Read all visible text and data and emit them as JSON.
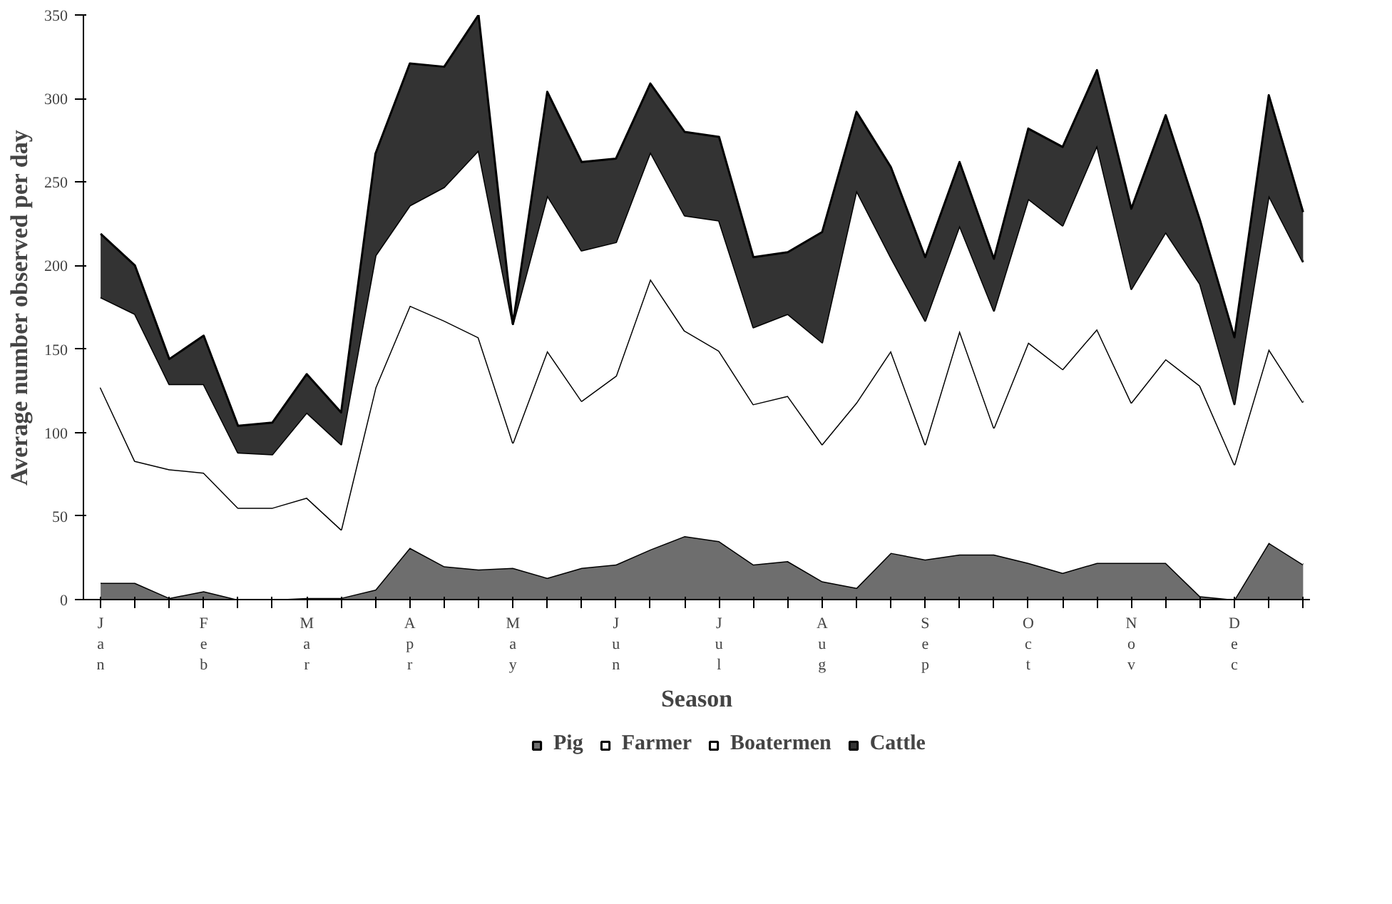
{
  "chart_data": {
    "type": "area",
    "stacked": true,
    "xlabel": "Season",
    "ylabel": "Average number observed per day",
    "categories": [
      "Jan",
      null,
      null,
      "Feb",
      null,
      null,
      "Mar",
      null,
      null,
      "Apr",
      null,
      null,
      "May",
      null,
      null,
      "Jun",
      null,
      null,
      "Jul",
      null,
      null,
      "Aug",
      null,
      null,
      "Sep",
      null,
      null,
      "Oct",
      null,
      null,
      "Nov",
      null,
      null,
      "Dec",
      null,
      null
    ],
    "series": [
      {
        "name": "Pig",
        "color": "#6e6e6e",
        "values": [
          10,
          10,
          1,
          5,
          0,
          0,
          1,
          1,
          6,
          31,
          20,
          18,
          19,
          13,
          19,
          21,
          30,
          38,
          35,
          21,
          23,
          11,
          7,
          28,
          24,
          27,
          27,
          22,
          16,
          22,
          22,
          22,
          2,
          0,
          34,
          21
        ]
      },
      {
        "name": "Farmer",
        "color": "#ffffff",
        "values": [
          117,
          73,
          77,
          71,
          55,
          55,
          60,
          41,
          121,
          145,
          147,
          139,
          75,
          136,
          100,
          113,
          162,
          123,
          114,
          96,
          99,
          82,
          111,
          121,
          69,
          134,
          76,
          132,
          122,
          140,
          96,
          122,
          126,
          81,
          116,
          97
        ]
      },
      {
        "name": "Boatermen",
        "color": "#ffffff",
        "values": [
          54,
          88,
          51,
          53,
          33,
          32,
          51,
          51,
          79,
          60,
          80,
          112,
          71,
          93,
          90,
          80,
          76,
          69,
          78,
          46,
          49,
          61,
          127,
          56,
          74,
          63,
          70,
          86,
          86,
          110,
          68,
          76,
          61,
          36,
          92,
          84
        ]
      },
      {
        "name": "Cattle",
        "color": "#333333",
        "values": [
          38,
          29,
          15,
          29,
          16,
          19,
          23,
          19,
          61,
          85,
          72,
          81,
          0,
          62,
          53,
          50,
          41,
          50,
          50,
          42,
          37,
          66,
          47,
          54,
          38,
          38,
          31,
          42,
          47,
          45,
          48,
          70,
          38,
          40,
          60,
          30
        ]
      }
    ],
    "ylim": [
      0,
      350
    ],
    "yticks": [
      0,
      50,
      100,
      150,
      200,
      250,
      300,
      350
    ],
    "grid": false,
    "legend": "bottom"
  }
}
